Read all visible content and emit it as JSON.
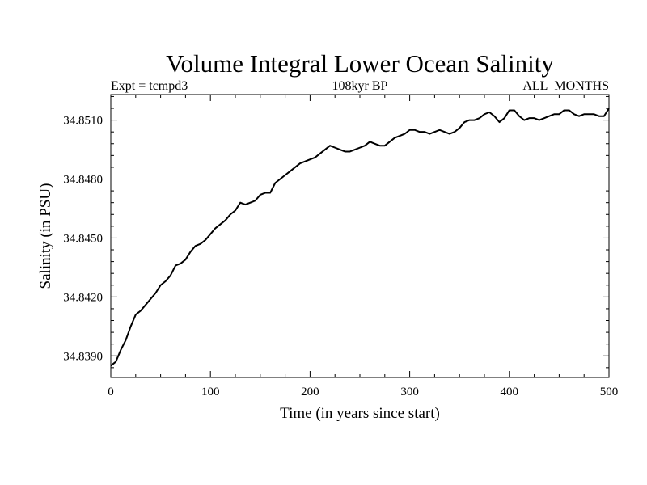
{
  "chart_data": {
    "type": "line",
    "title": "Volume Integral Lower Ocean Salinity",
    "subtitle_left": "Expt = tcmpd3",
    "subtitle_center": "108kyr BP",
    "subtitle_right": "ALL_MONTHS",
    "xlabel": "Time (in years since start)",
    "ylabel": "Salinity (in PSU)",
    "xlim": [
      0,
      500
    ],
    "ylim": [
      34.8379,
      34.8523
    ],
    "xticks": [
      0,
      100,
      200,
      300,
      400,
      500
    ],
    "xtick_labels": [
      "0",
      "100",
      "200",
      "300",
      "400",
      "500"
    ],
    "yticks": [
      34.839,
      34.842,
      34.845,
      34.848,
      34.851
    ],
    "ytick_labels": [
      "34.8390",
      "34.8420",
      "34.8450",
      "34.8480",
      "34.8510"
    ],
    "grid": false,
    "series": [
      {
        "x": [
          0,
          5,
          10,
          15,
          20,
          25,
          30,
          35,
          40,
          45,
          50,
          55,
          60,
          65,
          70,
          75,
          80,
          85,
          90,
          95,
          100,
          105,
          110,
          115,
          120,
          125,
          130,
          135,
          140,
          145,
          150,
          155,
          160,
          165,
          170,
          175,
          180,
          185,
          190,
          195,
          200,
          205,
          210,
          215,
          220,
          225,
          230,
          235,
          240,
          245,
          250,
          255,
          260,
          265,
          270,
          275,
          280,
          285,
          290,
          295,
          300,
          305,
          310,
          315,
          320,
          325,
          330,
          335,
          340,
          345,
          350,
          355,
          360,
          365,
          370,
          375,
          380,
          385,
          390,
          395,
          400,
          405,
          410,
          415,
          420,
          425,
          430,
          435,
          440,
          445,
          450,
          455,
          460,
          465,
          470,
          475,
          480,
          485,
          490,
          495,
          500
        ],
        "values": [
          34.8385,
          34.8387,
          34.8393,
          34.8398,
          34.8405,
          34.8411,
          34.8413,
          34.8416,
          34.8419,
          34.8422,
          34.8426,
          34.8428,
          34.8431,
          34.8436,
          34.8437,
          34.8439,
          34.8443,
          34.8446,
          34.8447,
          34.8449,
          34.8452,
          34.8455,
          34.8457,
          34.8459,
          34.8462,
          34.8464,
          34.8468,
          34.8467,
          34.8468,
          34.8469,
          34.8472,
          34.8473,
          34.8473,
          34.8478,
          34.848,
          34.8482,
          34.8484,
          34.8486,
          34.8488,
          34.8489,
          34.849,
          34.8491,
          34.8493,
          34.8495,
          34.8497,
          34.8496,
          34.8495,
          34.8494,
          34.8494,
          34.8495,
          34.8496,
          34.8497,
          34.8499,
          34.8498,
          34.8497,
          34.8497,
          34.8499,
          34.8501,
          34.8502,
          34.8503,
          34.8505,
          34.8505,
          34.8504,
          34.8504,
          34.8503,
          34.8504,
          34.8505,
          34.8504,
          34.8503,
          34.8504,
          34.8506,
          34.8509,
          34.851,
          34.851,
          34.8511,
          34.8513,
          34.8514,
          34.8512,
          34.8509,
          34.8511,
          34.8515,
          34.8515,
          34.8512,
          34.851,
          34.8511,
          34.8511,
          34.851,
          34.8511,
          34.8512,
          34.8513,
          34.8513,
          34.8515,
          34.8515,
          34.8513,
          34.8512,
          34.8513,
          34.8513,
          34.8513,
          34.8512,
          34.8512,
          34.8516
        ]
      }
    ]
  }
}
